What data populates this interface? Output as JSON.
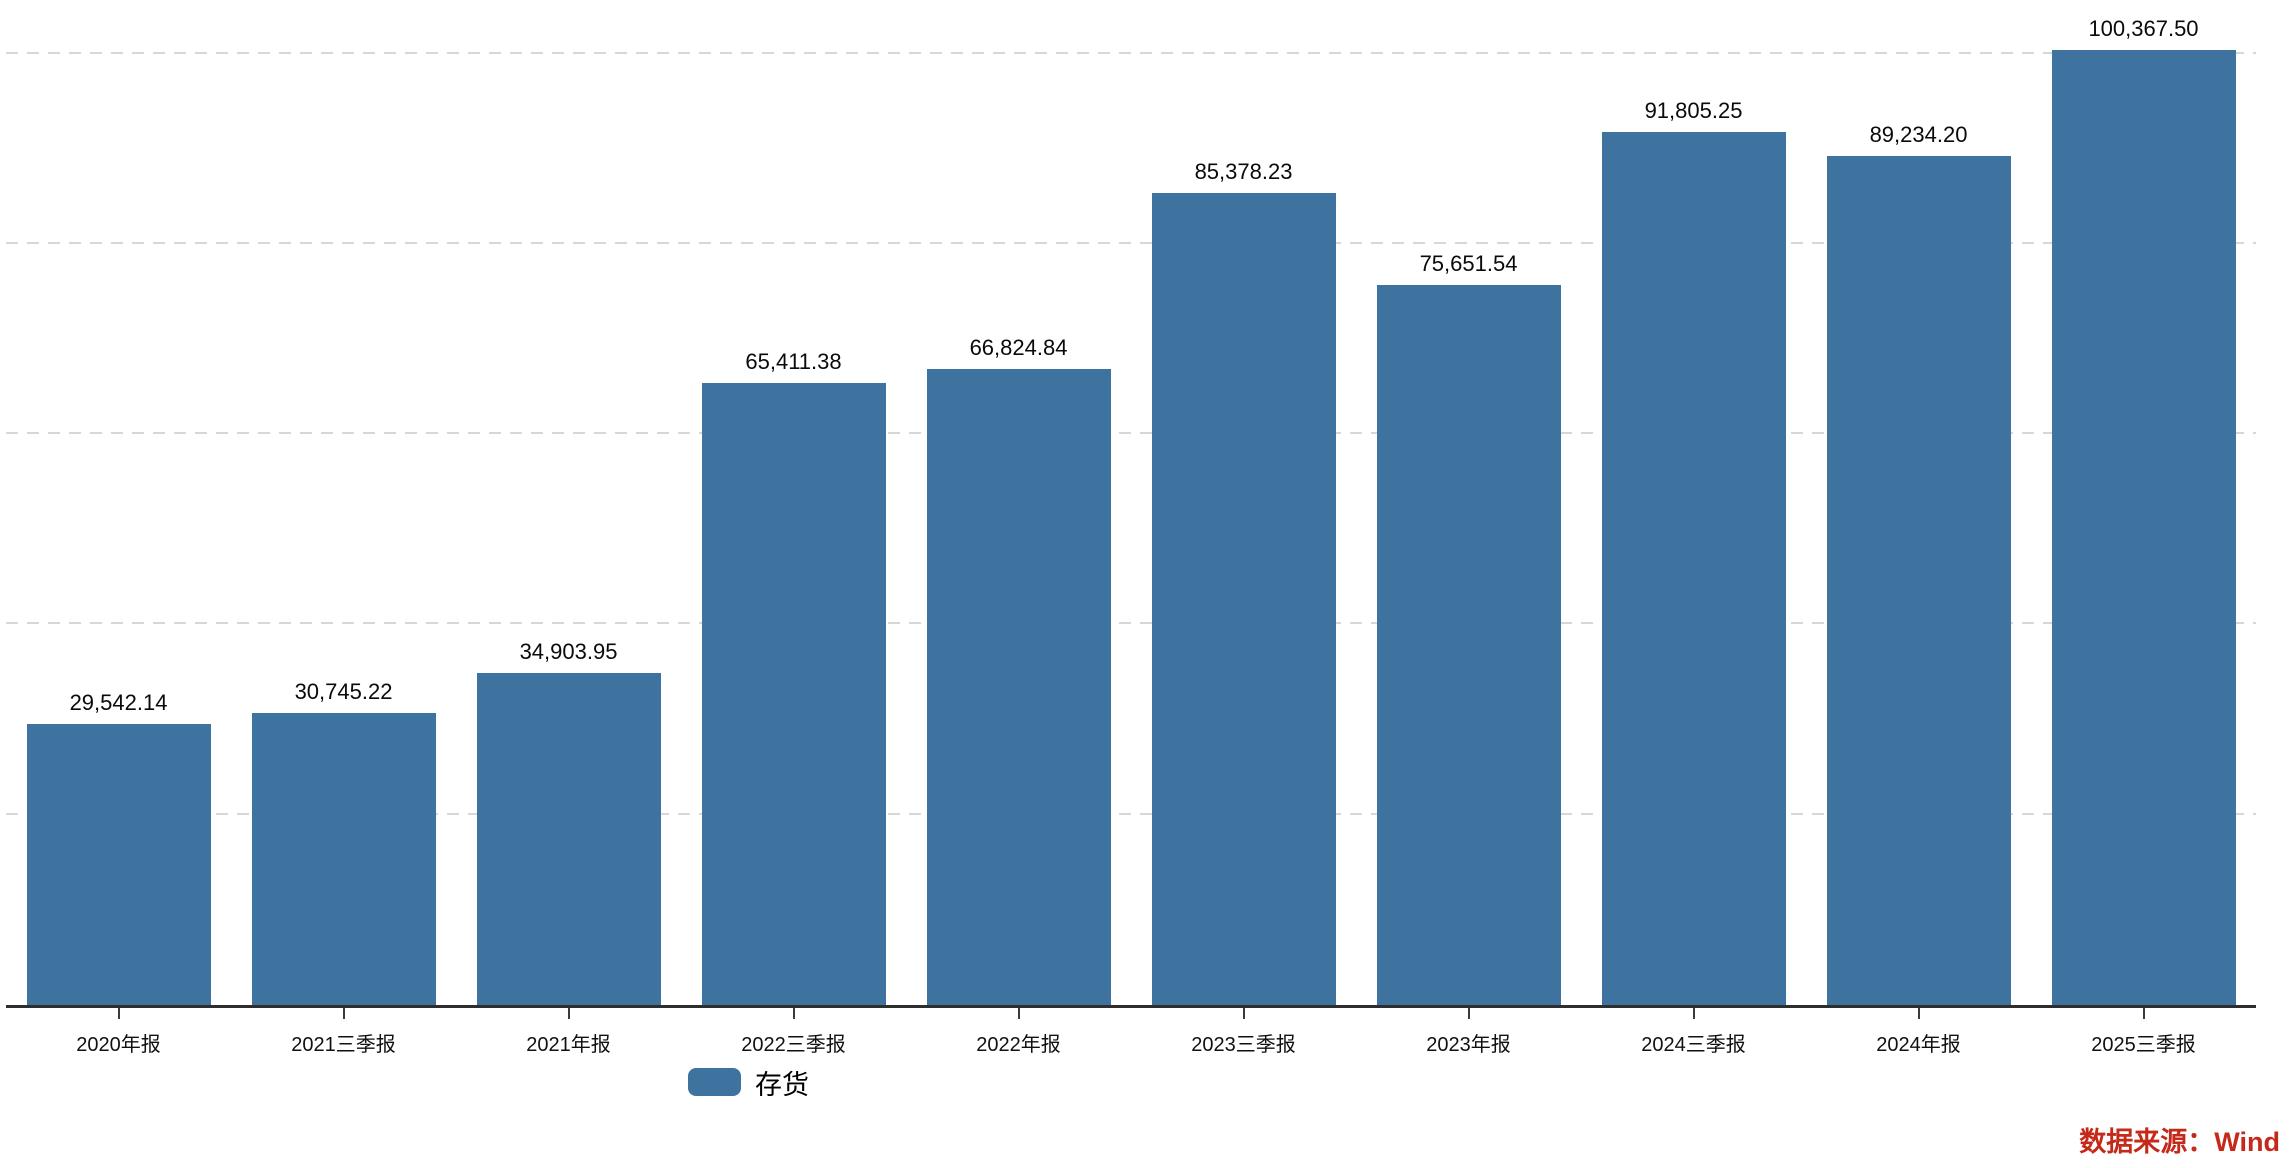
{
  "chart_data": {
    "type": "bar",
    "title": "",
    "xlabel": "",
    "ylabel": "",
    "categories": [
      "2020年报",
      "2021三季报",
      "2021年报",
      "2022三季报",
      "2022年报",
      "2023三季报",
      "2023年报",
      "2024三季报",
      "2024年报",
      "2025三季报"
    ],
    "series": [
      {
        "name": "存货",
        "values": [
          29542.14,
          30745.22,
          34903.95,
          65411.38,
          66824.84,
          85378.23,
          75651.54,
          91805.25,
          89234.2,
          100367.5
        ]
      }
    ],
    "value_labels": [
      "29,542.14",
      "30,745.22",
      "34,903.95",
      "65,411.38",
      "66,824.84",
      "85,378.23",
      "75,651.54",
      "91,805.25",
      "89,234.20",
      "100,367.50"
    ],
    "ylim": [
      0,
      105620
    ],
    "gridline_values": [
      20000,
      40000,
      60000,
      80000,
      100000
    ],
    "grid": "horizontal-dashed",
    "legend_position": "bottom-left",
    "bar_color": "#3f739f"
  },
  "legend": {
    "label": "存货"
  },
  "source": {
    "text": "数据来源：Wind",
    "color": "#c5291a"
  }
}
